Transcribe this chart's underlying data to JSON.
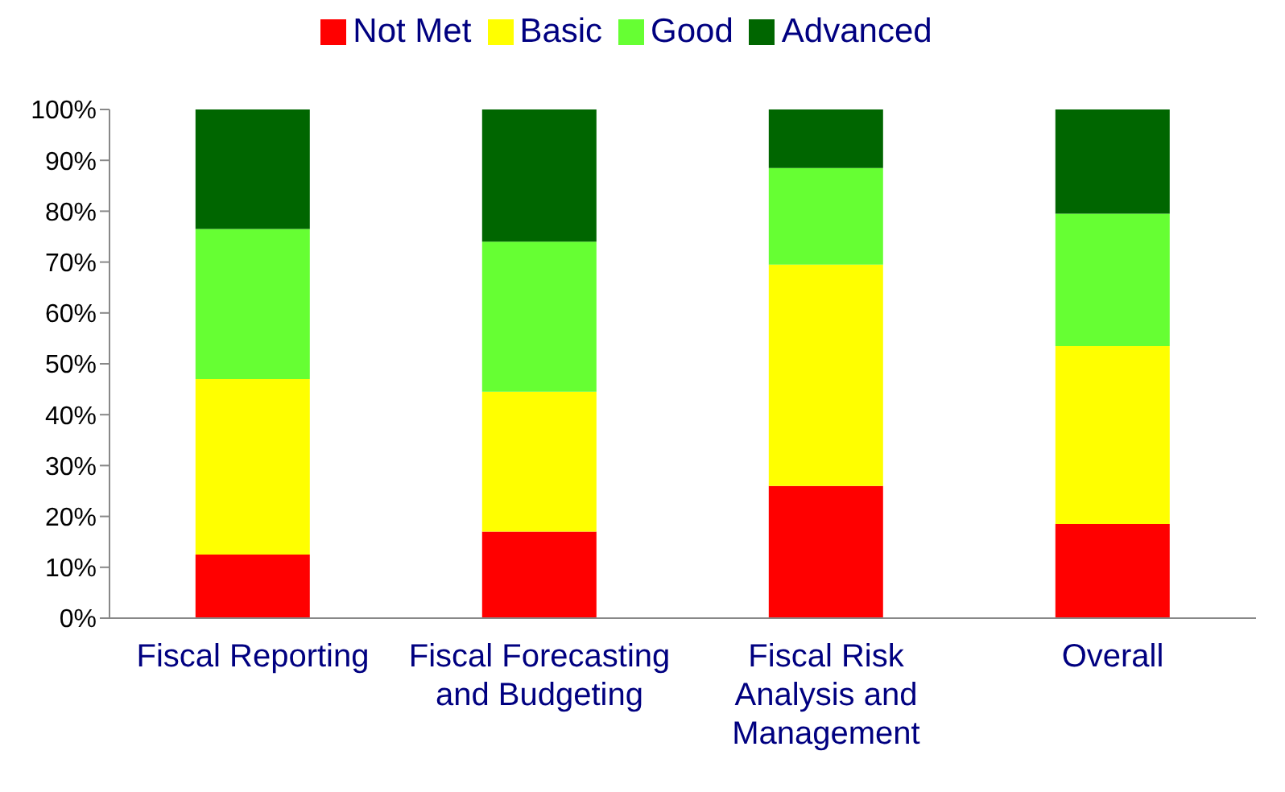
{
  "chart_data": {
    "type": "bar",
    "stacked": true,
    "categories": [
      "Fiscal Reporting",
      "Fiscal Forecasting and Budgeting",
      "Fiscal Risk Analysis and Management",
      "Overall"
    ],
    "series": [
      {
        "name": "Not Met",
        "color": "#ff0000",
        "values": [
          12.5,
          17,
          26,
          18.5
        ]
      },
      {
        "name": "Basic",
        "color": "#ffff00",
        "values": [
          34.5,
          27.5,
          43.5,
          35
        ]
      },
      {
        "name": "Good",
        "color": "#66ff33",
        "values": [
          29.5,
          29.5,
          19,
          26
        ]
      },
      {
        "name": "Advanced",
        "color": "#006600",
        "values": [
          23.5,
          26,
          11.5,
          20.5
        ]
      }
    ],
    "ylim": [
      0,
      100
    ],
    "yticks": [
      {
        "value": 0,
        "label": "0%"
      },
      {
        "value": 10,
        "label": "10%"
      },
      {
        "value": 20,
        "label": "20%"
      },
      {
        "value": 30,
        "label": "30%"
      },
      {
        "value": 40,
        "label": "40%"
      },
      {
        "value": 50,
        "label": "50%"
      },
      {
        "value": 60,
        "label": "60%"
      },
      {
        "value": 70,
        "label": "70%"
      },
      {
        "value": 80,
        "label": "80%"
      },
      {
        "value": 90,
        "label": "90%"
      },
      {
        "value": 100,
        "label": "100%"
      }
    ],
    "grid": false,
    "legend": "top"
  }
}
